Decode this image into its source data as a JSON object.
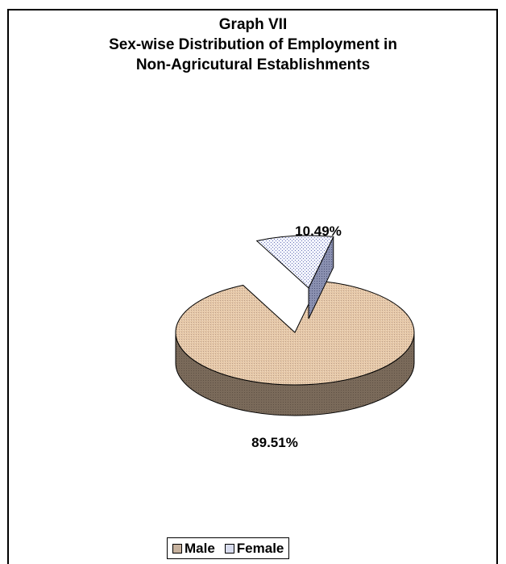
{
  "chart_data": {
    "type": "pie",
    "title": [
      "Graph VII",
      "Sex-wise Distribution of Employment in",
      "Non-Agricutural Establishments"
    ],
    "slices": [
      {
        "name": "Male",
        "value": 89.51,
        "label": "89.51%",
        "color": "#E6C7A5",
        "exploded": false
      },
      {
        "name": "Female",
        "value": 10.49,
        "label": "10.49%",
        "color": "#E8ECF8",
        "exploded": true
      }
    ],
    "legend": {
      "position": "bottom",
      "entries": [
        "Male",
        "Female"
      ]
    },
    "style": "3d"
  }
}
